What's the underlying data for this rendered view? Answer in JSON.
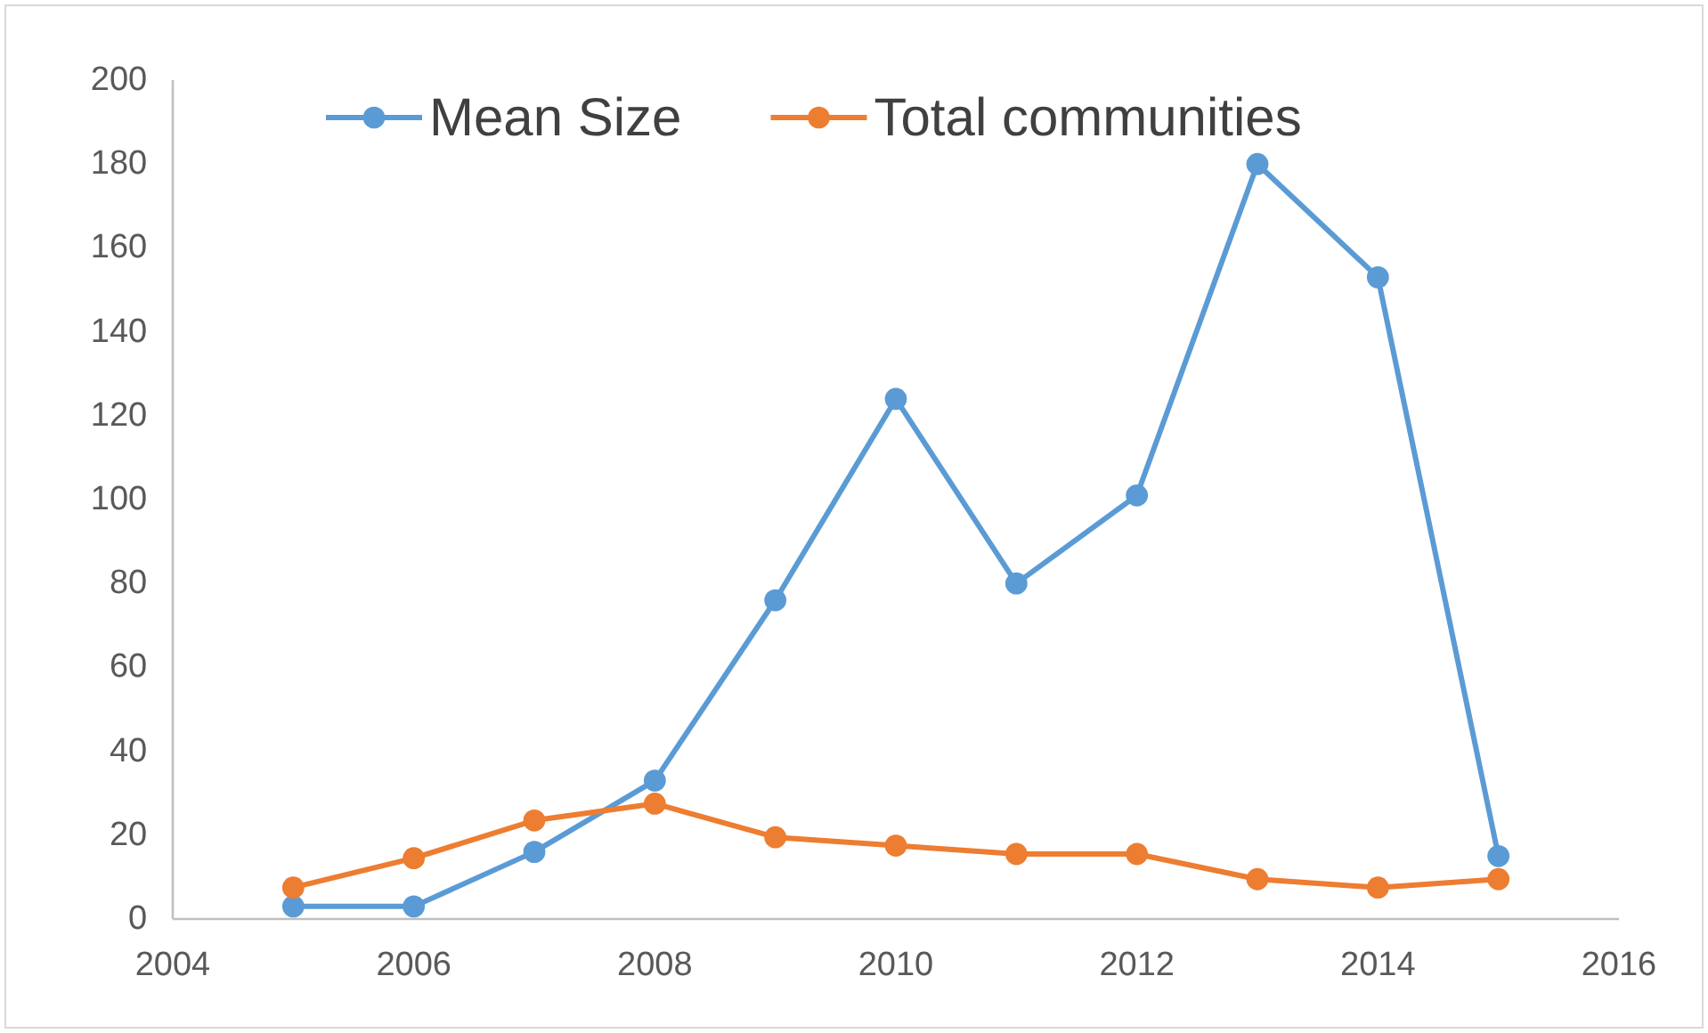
{
  "chart_data": {
    "type": "line",
    "x": [
      2005,
      2006,
      2007,
      2008,
      2009,
      2010,
      2011,
      2012,
      2013,
      2014,
      2015
    ],
    "series": [
      {
        "name": "Mean Size",
        "color": "#5b9bd5",
        "values": [
          3,
          3,
          16,
          33,
          76,
          124,
          80,
          101,
          180,
          153,
          15
        ]
      },
      {
        "name": "Total communities",
        "color": "#ed7d31",
        "values": [
          7.5,
          14.5,
          23.5,
          27.5,
          19.5,
          17.5,
          15.5,
          15.5,
          9.5,
          7.5,
          9.5
        ]
      }
    ],
    "xlim": [
      2004,
      2016
    ],
    "xticks": [
      2004,
      2006,
      2008,
      2010,
      2012,
      2014,
      2016
    ],
    "ylim": [
      0,
      200
    ],
    "yticks": [
      0,
      20,
      40,
      60,
      80,
      100,
      120,
      140,
      160,
      180,
      200
    ],
    "grid": false,
    "legend": "top",
    "marker": "circle",
    "line_style": "solid"
  }
}
